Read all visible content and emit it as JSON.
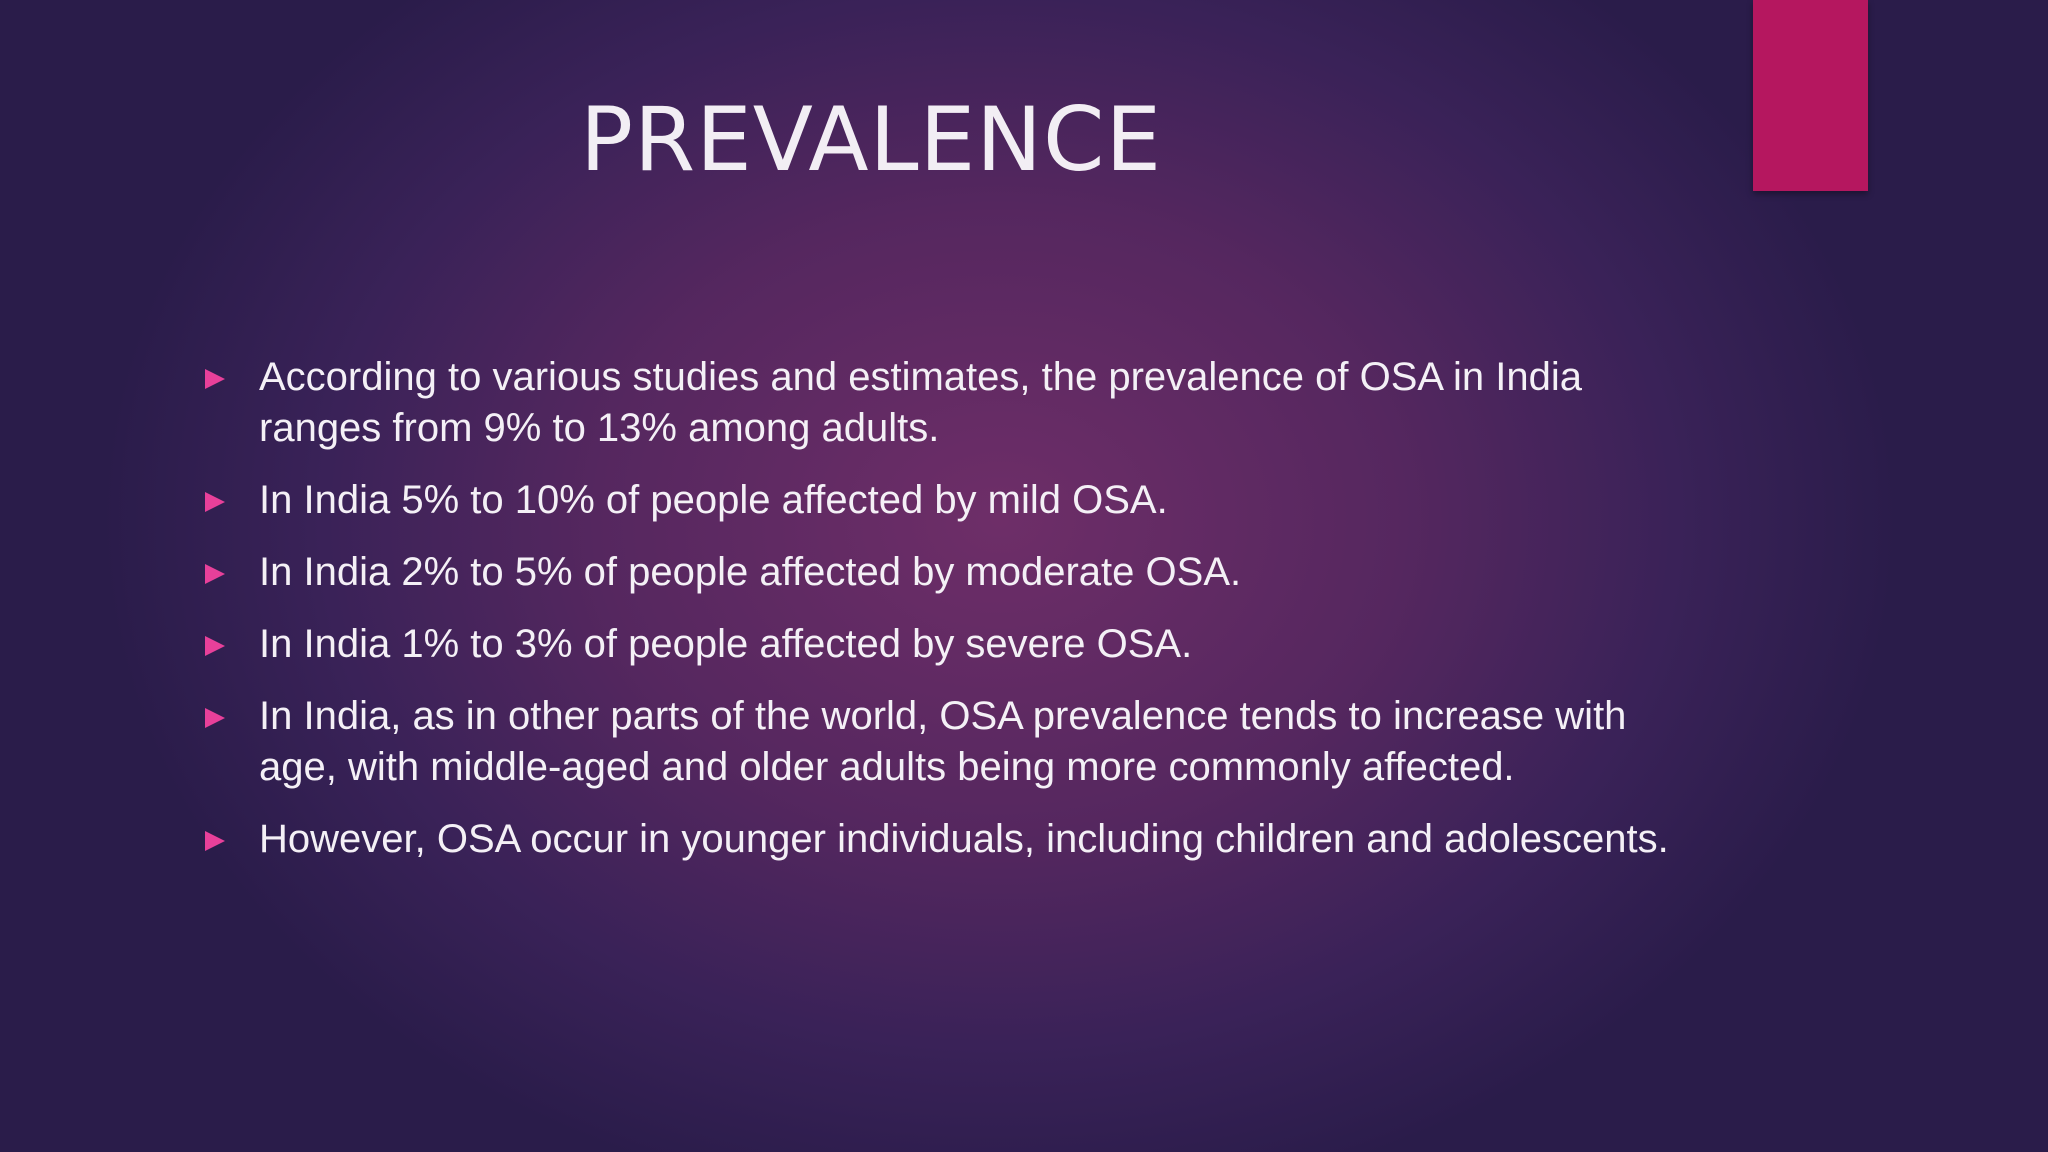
{
  "title": "PREVALENCE",
  "bullets": [
    "According to various studies and estimates, the prevalence of OSA in India ranges from 9% to 13% among adults.",
    "In India 5% to 10% of people affected by mild OSA.",
    "In India 2% to 5% of people affected by moderate OSA.",
    "In India 1% to 3% of people affected by severe OSA.",
    "In India, as in other parts of the world, OSA prevalence tends to increase with age, with middle-aged and older adults being more commonly affected.",
    "However, OSA occur in younger individuals, including children and adolescents."
  ]
}
